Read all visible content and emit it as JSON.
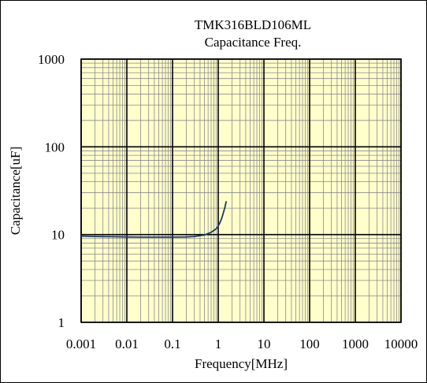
{
  "chart_data": {
    "type": "line",
    "title": "TMK316BLD106ML",
    "subtitle": "Capacitance Freq.",
    "xlabel": "Frequency[MHz]",
    "ylabel": "Capacitance[uF]",
    "x_scale": "log",
    "y_scale": "log",
    "xlim": [
      0.001,
      10000
    ],
    "ylim": [
      1,
      1000
    ],
    "x_ticks": [
      "0.001",
      "0.01",
      "0.1",
      "1",
      "10",
      "100",
      "1000",
      "10000"
    ],
    "y_ticks": [
      "1",
      "10",
      "100",
      "1000"
    ],
    "grid": true,
    "plot_background": "#ffffcc",
    "line_color": "#1f3a5f",
    "series": [
      {
        "x": [
          0.001,
          0.002,
          0.005,
          0.01,
          0.02,
          0.05,
          0.1,
          0.2,
          0.3,
          0.5,
          0.7,
          0.9,
          1.0,
          1.1,
          1.2,
          1.3,
          1.4,
          1.5
        ],
        "y": [
          9.6,
          9.5,
          9.45,
          9.4,
          9.35,
          9.35,
          9.35,
          9.4,
          9.5,
          9.9,
          10.6,
          11.6,
          12.5,
          13.8,
          15.5,
          17.8,
          20.5,
          24.0
        ]
      }
    ]
  }
}
